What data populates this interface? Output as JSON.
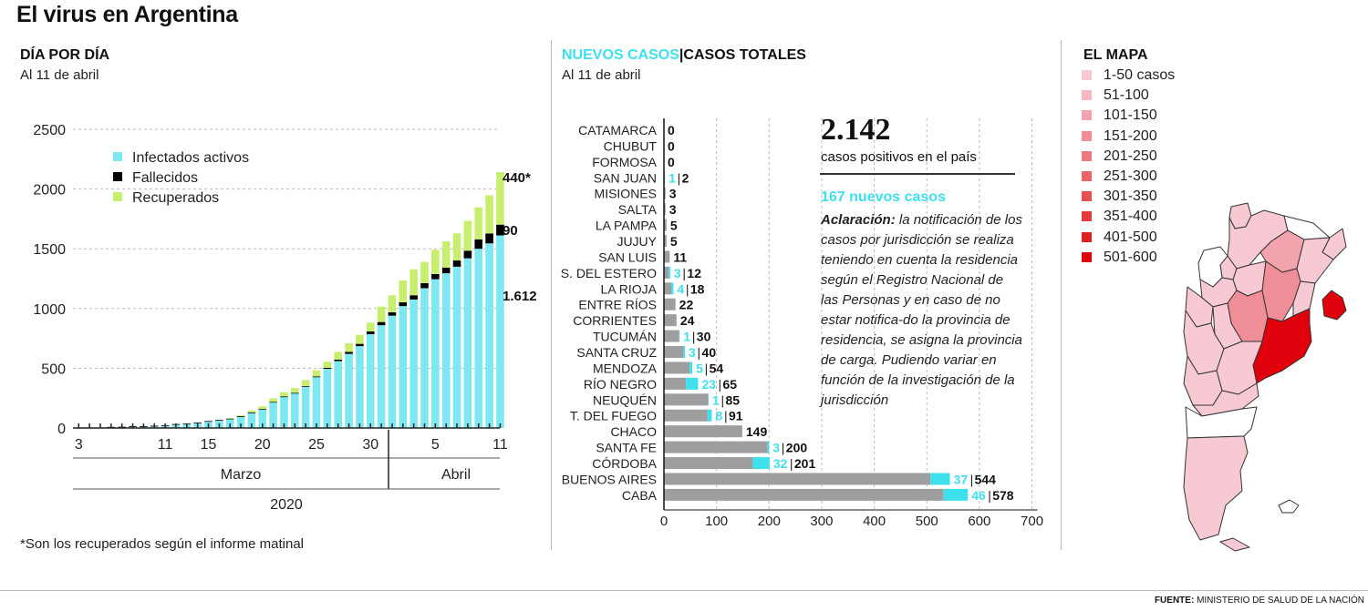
{
  "title": "El virus en Argentina",
  "left": {
    "heading": "DÍA POR DÍA",
    "date": "Al 11 de abril",
    "note": "*Son los recuperados según el informe matinal",
    "end_labels": {
      "recovered": "440*",
      "deaths": "90",
      "active": "1.612"
    }
  },
  "middle": {
    "heading_new": "NUEVOS CASOS",
    "heading_sep": "|",
    "heading_total": "CASOS TOTALES",
    "date": "Al 11 de abril",
    "total_number": "2.142",
    "total_label": "casos positivos en el país",
    "new_cases": "167 nuevos casos",
    "clarification_title": "Aclaración:",
    "clarification_text": "la notificación de los casos por jurisdicción se realiza teniendo en cuenta la residencia según el Registro Nacional de las Personas y en caso de no estar notifica-do la provincia de residencia, se asigna la provincia de carga. Pudiendo variar en función de la investigación de la jurisdicción"
  },
  "right": {
    "heading": "EL MAPA",
    "legend": [
      {
        "label": "1-50 casos",
        "color": "#f7c9d2"
      },
      {
        "label": "51-100",
        "color": "#f5b8c1"
      },
      {
        "label": "101-150",
        "color": "#f3a3ad"
      },
      {
        "label": "151-200",
        "color": "#f08e97"
      },
      {
        "label": "201-250",
        "color": "#ed7a80"
      },
      {
        "label": "251-300",
        "color": "#ea6568"
      },
      {
        "label": "301-350",
        "color": "#e65052"
      },
      {
        "label": "351-400",
        "color": "#e23a3b"
      },
      {
        "label": "401-500",
        "color": "#de2224"
      },
      {
        "label": "501-600",
        "color": "#e0000b"
      }
    ]
  },
  "source": {
    "label": "FUENTE:",
    "text": "MINISTERIO DE SALUD DE LA NACIÓN"
  },
  "colors": {
    "active": "#7ee8f2",
    "deaths": "#000000",
    "recovered": "#c7ee6c",
    "bar_total": "#9e9e9e",
    "bar_new": "#3ee0ee",
    "map_outline": "#333333"
  },
  "chart_data": [
    {
      "type": "bar",
      "stacked": true,
      "title": "DÍA POR DÍA",
      "subtitle": "Al 11 de abril",
      "x_tick_labels": [
        "3",
        "11",
        "15",
        "20",
        "25",
        "30",
        "5",
        "11"
      ],
      "x_group_labels": [
        "Marzo",
        "Abril"
      ],
      "x_year_label": "2020",
      "categories": [
        "3-mar",
        "4-mar",
        "5-mar",
        "6-mar",
        "7-mar",
        "8-mar",
        "9-mar",
        "10-mar",
        "11-mar",
        "12-mar",
        "13-mar",
        "14-mar",
        "15-mar",
        "16-mar",
        "17-mar",
        "18-mar",
        "19-mar",
        "20-mar",
        "21-mar",
        "22-mar",
        "23-mar",
        "24-mar",
        "25-mar",
        "26-mar",
        "27-mar",
        "28-mar",
        "29-mar",
        "30-mar",
        "31-mar",
        "1-abr",
        "2-abr",
        "3-abr",
        "4-abr",
        "5-abr",
        "6-abr",
        "7-abr",
        "8-abr",
        "9-abr",
        "10-abr",
        "11-abr"
      ],
      "series": [
        {
          "name": "Infectados activos",
          "values": [
            1,
            1,
            2,
            8,
            9,
            12,
            12,
            17,
            19,
            31,
            34,
            44,
            56,
            65,
            77,
            97,
            127,
            156,
            215,
            260,
            290,
            345,
            425,
            495,
            560,
            620,
            685,
            785,
            860,
            940,
            1020,
            1075,
            1170,
            1245,
            1295,
            1350,
            1420,
            1500,
            1545,
            1612
          ]
        },
        {
          "name": "Fallecidos",
          "values": [
            0,
            0,
            0,
            1,
            1,
            2,
            2,
            2,
            2,
            2,
            2,
            2,
            2,
            2,
            2,
            2,
            3,
            3,
            4,
            4,
            4,
            5,
            6,
            8,
            12,
            17,
            19,
            23,
            27,
            28,
            32,
            36,
            42,
            44,
            47,
            52,
            64,
            79,
            83,
            90
          ]
        },
        {
          "name": "Recuperados",
          "values": [
            0,
            0,
            0,
            0,
            0,
            0,
            0,
            0,
            0,
            0,
            0,
            0,
            0,
            0,
            5,
            7,
            17,
            22,
            29,
            36,
            40,
            52,
            52,
            52,
            65,
            72,
            76,
            74,
            129,
            142,
            183,
            217,
            178,
            202,
            220,
            227,
            250,
            268,
            320,
            440
          ]
        }
      ],
      "ylim": [
        0,
        2500
      ],
      "yticks": [
        0,
        500,
        1000,
        1500,
        2000,
        2500
      ],
      "grid": true,
      "legend": "top-left"
    },
    {
      "type": "bar",
      "orientation": "horizontal",
      "stacked": true,
      "title": "NUEVOS CASOS | CASOS TOTALES",
      "subtitle": "Al 11 de abril",
      "categories": [
        "CATAMARCA",
        "CHUBUT",
        "FORMOSA",
        "SAN JUAN",
        "MISIONES",
        "SALTA",
        "LA PAMPA",
        "JUJUY",
        "SAN LUIS",
        "S. DEL ESTERO",
        "LA RIOJA",
        "ENTRE RÍOS",
        "CORRIENTES",
        "TUCUMÁN",
        "SANTA CRUZ",
        "MENDOZA",
        "RÍO NEGRO",
        "NEUQUÉN",
        "T. DEL FUEGO",
        "CHACO",
        "SANTA FE",
        "CÓRDOBA",
        "BUENOS AIRES",
        "CABA"
      ],
      "series": [
        {
          "name": "Nuevos casos",
          "values": [
            0,
            0,
            0,
            1,
            0,
            0,
            0,
            0,
            0,
            3,
            4,
            0,
            0,
            1,
            3,
            5,
            23,
            1,
            8,
            0,
            3,
            32,
            37,
            46
          ]
        },
        {
          "name": "Casos totales",
          "values": [
            0,
            0,
            0,
            2,
            3,
            3,
            5,
            5,
            11,
            12,
            18,
            22,
            24,
            30,
            40,
            54,
            65,
            85,
            91,
            149,
            200,
            201,
            544,
            578
          ]
        }
      ],
      "xlim": [
        0,
        700
      ],
      "xticks": [
        0,
        100,
        200,
        300,
        400,
        500,
        600,
        700
      ],
      "grid": true
    }
  ]
}
